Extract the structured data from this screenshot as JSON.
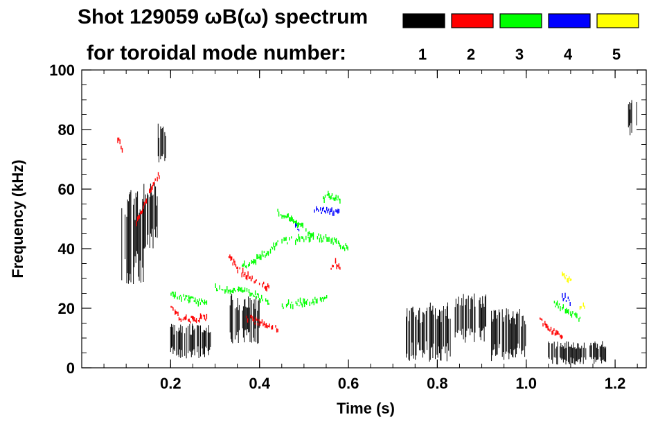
{
  "chart_data": {
    "type": "spectrogram",
    "title_line1": "Shot 129059 ωB(ω) spectrum",
    "title_line2": "for toroidal mode number:",
    "xlabel": "Time (s)",
    "ylabel": "Frequency (kHz)",
    "xlim": [
      0.0,
      1.27
    ],
    "ylim": [
      0,
      100
    ],
    "x_ticks": [
      {
        "value": 0.2,
        "label": "0.2"
      },
      {
        "value": 0.4,
        "label": "0.4"
      },
      {
        "value": 0.6,
        "label": "0.6"
      },
      {
        "value": 0.8,
        "label": "0.8"
      },
      {
        "value": 1.0,
        "label": "1.0"
      },
      {
        "value": 1.2,
        "label": "1.2"
      }
    ],
    "y_ticks": [
      {
        "value": 0,
        "label": "0"
      },
      {
        "value": 20,
        "label": "20"
      },
      {
        "value": 40,
        "label": "40"
      },
      {
        "value": 60,
        "label": "60"
      },
      {
        "value": 80,
        "label": "80"
      },
      {
        "value": 100,
        "label": "100"
      }
    ],
    "legend": [
      {
        "n": "1",
        "color": "#000000"
      },
      {
        "n": "2",
        "color": "#ff0000"
      },
      {
        "n": "3",
        "color": "#00ff00"
      },
      {
        "n": "4",
        "color": "#0000ff"
      },
      {
        "n": "5",
        "color": "#ffff00"
      }
    ],
    "series": [
      {
        "name": "n=1",
        "color": "#000000",
        "regions": [
          {
            "t0": 0.09,
            "t1": 0.14,
            "f0": 28,
            "f1": 60
          },
          {
            "t0": 0.14,
            "t1": 0.17,
            "f0": 40,
            "f1": 62
          },
          {
            "t0": 0.17,
            "t1": 0.19,
            "f0": 68,
            "f1": 82
          },
          {
            "t0": 0.2,
            "t1": 0.29,
            "f0": 3,
            "f1": 15
          },
          {
            "t0": 0.33,
            "t1": 0.4,
            "f0": 8,
            "f1": 25
          },
          {
            "t0": 0.73,
            "t1": 0.83,
            "f0": 2,
            "f1": 22
          },
          {
            "t0": 0.84,
            "t1": 0.91,
            "f0": 8,
            "f1": 25
          },
          {
            "t0": 0.92,
            "t1": 1.0,
            "f0": 2,
            "f1": 20
          },
          {
            "t0": 1.05,
            "t1": 1.18,
            "f0": 1,
            "f1": 9
          },
          {
            "t0": 1.23,
            "t1": 1.25,
            "f0": 78,
            "f1": 90
          }
        ]
      },
      {
        "name": "n=2",
        "color": "#ff0000",
        "tracks": [
          {
            "t": [
              0.12,
              0.14,
              0.16,
              0.18
            ],
            "f": [
              48,
              55,
              62,
              66
            ]
          },
          {
            "t": [
              0.2,
              0.22,
              0.25,
              0.28
            ],
            "f": [
              20,
              17,
              16,
              17
            ]
          },
          {
            "t": [
              0.33,
              0.35,
              0.38,
              0.42
            ],
            "f": [
              38,
              33,
              30,
              27
            ]
          },
          {
            "t": [
              0.37,
              0.4,
              0.44
            ],
            "f": [
              17,
              15,
              13
            ]
          },
          {
            "t": [
              0.56,
              0.57,
              0.58
            ],
            "f": [
              33,
              35,
              33
            ]
          },
          {
            "t": [
              1.03,
              1.05,
              1.08
            ],
            "f": [
              16,
              13,
              11
            ]
          },
          {
            "t": [
              0.08,
              0.09
            ],
            "f": [
              77,
              73
            ]
          }
        ]
      },
      {
        "name": "n=3",
        "color": "#00ff00",
        "tracks": [
          {
            "t": [
              0.44,
              0.48,
              0.52,
              0.56,
              0.6
            ],
            "f": [
              52,
              49,
              44,
              43,
              40
            ]
          },
          {
            "t": [
              0.36,
              0.4,
              0.44,
              0.48,
              0.52
            ],
            "f": [
              34,
              37,
              42,
              43,
              44
            ]
          },
          {
            "t": [
              0.3,
              0.34,
              0.38,
              0.42
            ],
            "f": [
              27,
              26,
              25,
              22
            ]
          },
          {
            "t": [
              0.45,
              0.5,
              0.55
            ],
            "f": [
              21,
              22,
              23
            ]
          },
          {
            "t": [
              0.2,
              0.24,
              0.28
            ],
            "f": [
              25,
              23,
              22
            ]
          },
          {
            "t": [
              1.06,
              1.08,
              1.12
            ],
            "f": [
              22,
              20,
              16
            ]
          },
          {
            "t": [
              0.54,
              0.56,
              0.58
            ],
            "f": [
              57,
              58,
              56
            ]
          }
        ]
      },
      {
        "name": "n=4",
        "color": "#0000ff",
        "tracks": [
          {
            "t": [
              0.52,
              0.55,
              0.58
            ],
            "f": [
              53,
              53,
              52
            ]
          },
          {
            "t": [
              1.08,
              1.1
            ],
            "f": [
              24,
              22
            ]
          },
          {
            "t": [
              0.48,
              0.49
            ],
            "f": [
              47,
              47
            ]
          }
        ]
      },
      {
        "name": "n=5",
        "color": "#ffff00",
        "tracks": [
          {
            "t": [
              1.08,
              1.1
            ],
            "f": [
              31,
              29
            ]
          },
          {
            "t": [
              1.12,
              1.13
            ],
            "f": [
              21,
              20
            ]
          }
        ]
      }
    ]
  }
}
